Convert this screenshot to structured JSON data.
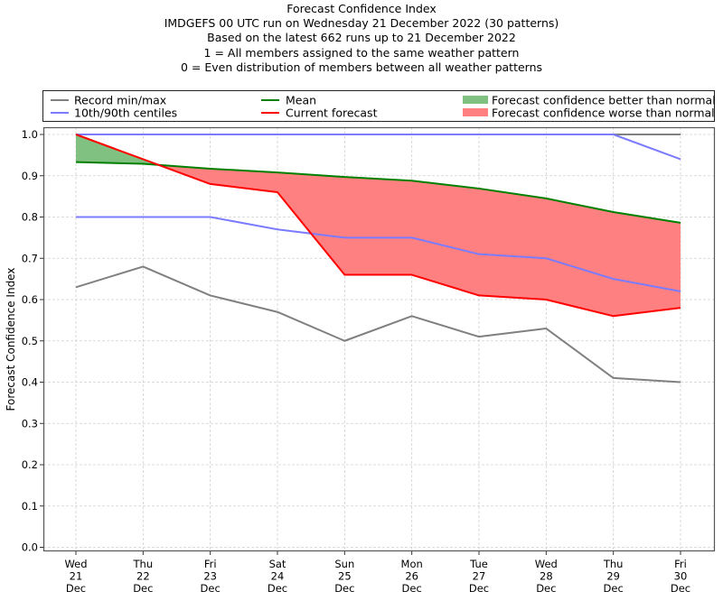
{
  "chart_data": {
    "type": "line",
    "title_lines": [
      "Forecast Confidence Index",
      "IMDGEFS 00 UTC run on Wednesday 21 December 2022 (30 patterns)",
      "Based on the latest 662 runs up to 21 December 2022",
      "1 = All members assigned to the same weather pattern",
      "0 = Even distribution of members between all weather patterns"
    ],
    "xlabel": "",
    "ylabel": "Forecast Confidence Index",
    "ylim": [
      0.0,
      1.0
    ],
    "yticks": [
      "0.0",
      "0.1",
      "0.2",
      "0.3",
      "0.4",
      "0.5",
      "0.6",
      "0.7",
      "0.8",
      "0.9",
      "1.0"
    ],
    "ytick_values": [
      0.0,
      0.1,
      0.2,
      0.3,
      0.4,
      0.5,
      0.6,
      0.7,
      0.8,
      0.9,
      1.0
    ],
    "grid": true,
    "categories": [
      [
        "Wed",
        "21",
        "Dec"
      ],
      [
        "Thu",
        "22",
        "Dec"
      ],
      [
        "Fri",
        "23",
        "Dec"
      ],
      [
        "Sat",
        "24",
        "Dec"
      ],
      [
        "Sun",
        "25",
        "Dec"
      ],
      [
        "Mon",
        "26",
        "Dec"
      ],
      [
        "Tue",
        "27",
        "Dec"
      ],
      [
        "Wed",
        "28",
        "Dec"
      ],
      [
        "Thu",
        "29",
        "Dec"
      ],
      [
        "Fri",
        "30",
        "Dec"
      ]
    ],
    "series": [
      {
        "name": "Record max",
        "legend": "Record min/max",
        "color": "#808080",
        "values": [
          1.0,
          1.0,
          1.0,
          1.0,
          1.0,
          1.0,
          1.0,
          1.0,
          1.0,
          1.0
        ]
      },
      {
        "name": "Record min",
        "legend": "Record min/max",
        "color": "#808080",
        "values": [
          0.63,
          0.68,
          0.61,
          0.57,
          0.5,
          0.56,
          0.51,
          0.53,
          0.41,
          0.4
        ]
      },
      {
        "name": "90th centile",
        "legend": "10th/90th centiles",
        "color": "#7b7bff",
        "values": [
          1.0,
          1.0,
          1.0,
          1.0,
          1.0,
          1.0,
          1.0,
          1.0,
          1.0,
          0.94
        ]
      },
      {
        "name": "10th centile",
        "legend": "10th/90th centiles",
        "color": "#7b7bff",
        "values": [
          0.8,
          0.8,
          0.8,
          0.77,
          0.75,
          0.75,
          0.71,
          0.7,
          0.65,
          0.62
        ]
      },
      {
        "name": "Mean",
        "legend": "Mean",
        "color": "#008000",
        "values": [
          0.933,
          0.929,
          0.917,
          0.908,
          0.897,
          0.888,
          0.869,
          0.845,
          0.812,
          0.786
        ]
      },
      {
        "name": "Current forecast",
        "legend": "Current forecast",
        "color": "#ff0000",
        "values": [
          1.0,
          0.94,
          0.88,
          0.86,
          0.66,
          0.66,
          0.61,
          0.6,
          0.56,
          0.58
        ]
      }
    ],
    "fills": {
      "better": {
        "label": "Forecast confidence better than normal",
        "color": "#80c080"
      },
      "worse": {
        "label": "Forecast confidence worse than normal",
        "color": "#ff8080"
      }
    },
    "legend": {
      "placement": "top",
      "entries": [
        {
          "label": "Record min/max",
          "kind": "line",
          "color": "#808080"
        },
        {
          "label": "10th/90th centiles",
          "kind": "line",
          "color": "#7b7bff"
        },
        {
          "label": "Mean",
          "kind": "line",
          "color": "#008000"
        },
        {
          "label": "Current forecast",
          "kind": "line",
          "color": "#ff0000"
        },
        {
          "label": "Forecast confidence better than normal",
          "kind": "patch",
          "color": "#80c080"
        },
        {
          "label": "Forecast confidence worse than normal",
          "kind": "patch",
          "color": "#ff8080"
        }
      ]
    }
  }
}
